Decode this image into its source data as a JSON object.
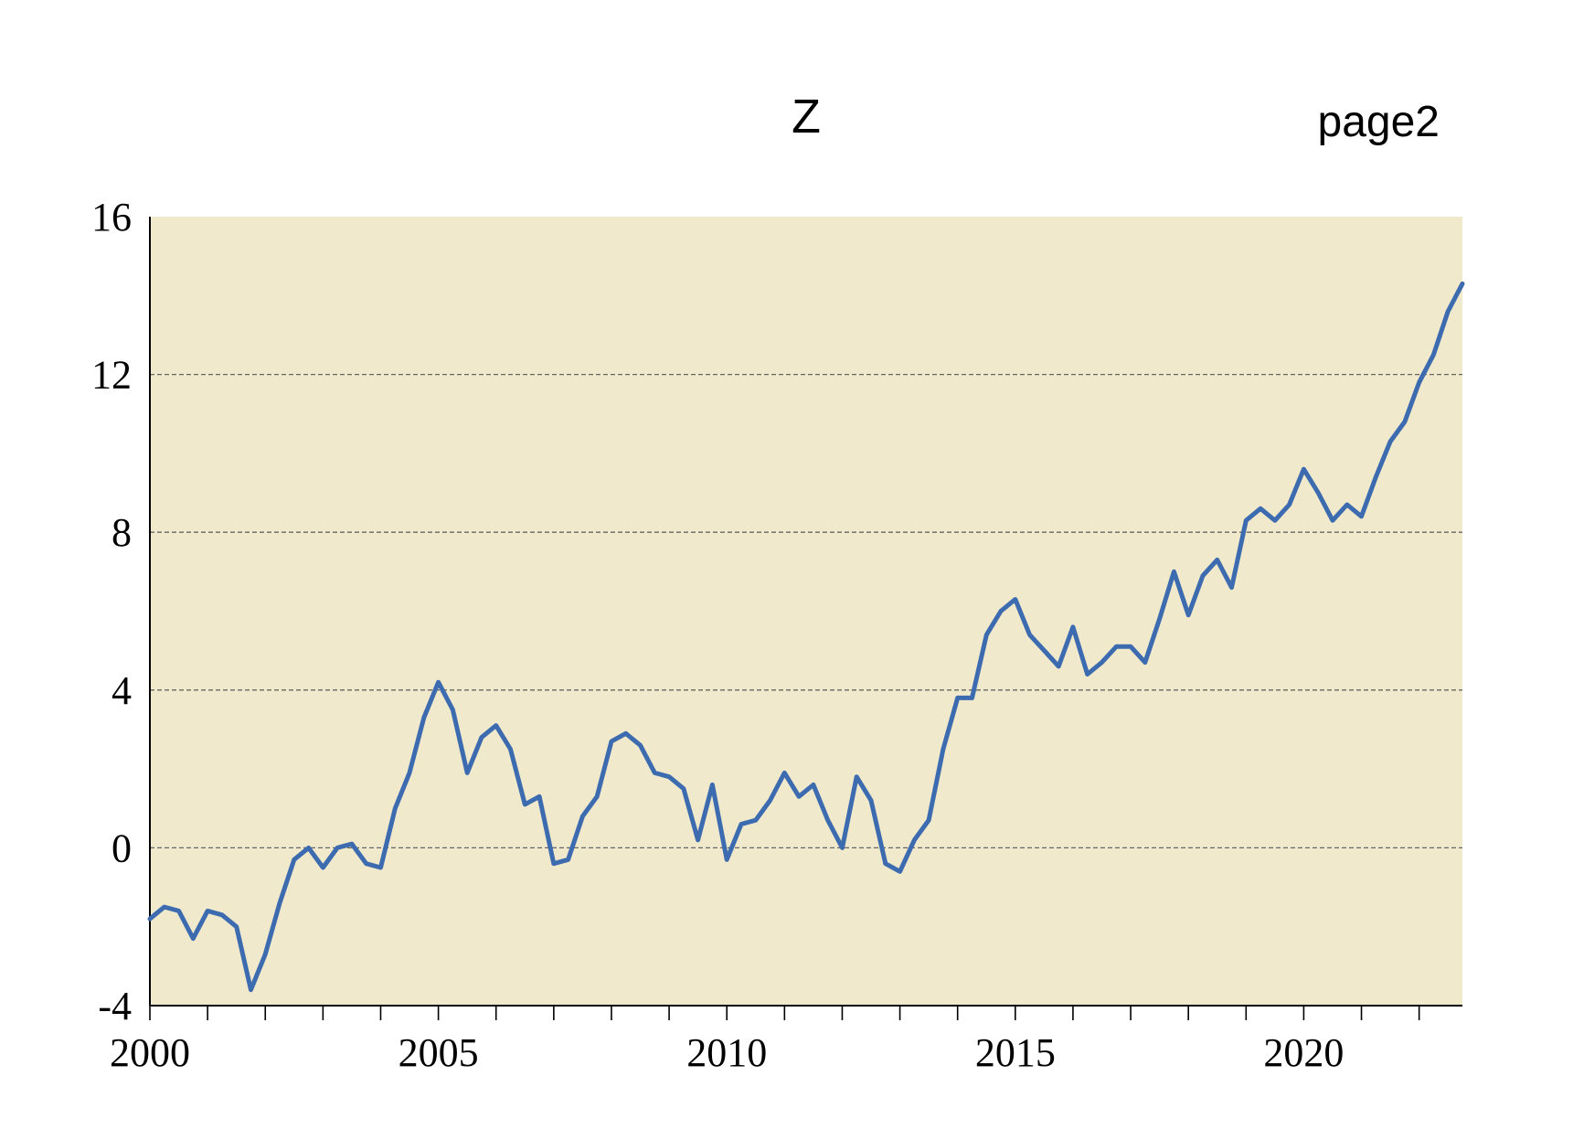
{
  "title": "Z",
  "page_label": "page2",
  "chart_data": {
    "type": "line",
    "title": "Z",
    "xlabel": "",
    "ylabel": "",
    "xlim": [
      2000,
      2022.75
    ],
    "ylim": [
      -4,
      16
    ],
    "x_ticks": [
      2000,
      2005,
      2010,
      2015,
      2020
    ],
    "y_ticks": [
      -4,
      0,
      4,
      8,
      12,
      16
    ],
    "grid": "horizontal dashed at 0, 4, 8, 12",
    "legend": "none",
    "colors": {
      "line": "#3d6bb0",
      "plot_bg": "#f1e9cb",
      "grid": "#666666"
    },
    "series": [
      {
        "x_start": 2000.0,
        "x_step": 0.25,
        "values": [
          -1.8,
          -1.5,
          -1.6,
          -2.3,
          -1.6,
          -1.7,
          -2.0,
          -3.6,
          -2.7,
          -1.4,
          -0.3,
          0.0,
          -0.5,
          0.0,
          0.1,
          -0.4,
          -0.5,
          1.0,
          1.9,
          3.3,
          4.2,
          3.5,
          1.9,
          2.8,
          3.1,
          2.5,
          1.1,
          1.3,
          -0.4,
          -0.3,
          0.8,
          1.3,
          2.7,
          2.9,
          2.6,
          1.9,
          1.8,
          1.5,
          0.2,
          1.6,
          -0.3,
          0.6,
          0.7,
          1.2,
          1.9,
          1.3,
          1.6,
          0.7,
          0.0,
          1.8,
          1.2,
          -0.4,
          -0.6,
          0.2,
          0.7,
          2.5,
          3.8,
          3.8,
          5.4,
          6.0,
          6.3,
          5.4,
          5.0,
          4.6,
          5.6,
          4.4,
          4.7,
          5.1,
          5.1,
          4.7,
          5.8,
          7.0,
          5.9,
          6.9,
          7.3,
          6.6,
          8.3,
          8.6,
          8.3,
          8.7,
          9.6,
          9.0,
          8.3,
          8.7,
          8.4,
          9.4,
          10.3,
          10.8,
          11.8,
          12.5,
          13.6,
          14.3
        ]
      }
    ]
  }
}
